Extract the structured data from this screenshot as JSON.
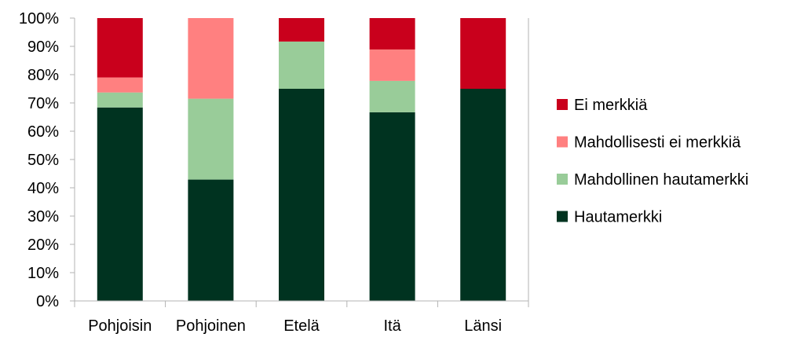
{
  "chart_data": {
    "type": "bar",
    "stacked": true,
    "normalized": true,
    "categories": [
      "Pohjoisin",
      "Pohjoinen",
      "Etelä",
      "Itä",
      "Länsi"
    ],
    "series": [
      {
        "name": "Hautamerkki",
        "color": "#003320",
        "values": [
          68.4,
          42.9,
          75.0,
          66.7,
          75.0
        ]
      },
      {
        "name": "Mahdollinen hautamerkki",
        "color": "#99cc99",
        "values": [
          5.3,
          28.6,
          16.7,
          11.1,
          0
        ]
      },
      {
        "name": "Mahdollisesti ei merkkiä",
        "color": "#ff8080",
        "values": [
          5.3,
          28.5,
          0,
          11.1,
          0
        ]
      },
      {
        "name": "Ei merkkiä",
        "color": "#c9001c",
        "values": [
          21.0,
          0,
          8.3,
          11.1,
          25.0
        ]
      }
    ],
    "y_ticks": [
      "0%",
      "10%",
      "20%",
      "30%",
      "40%",
      "50%",
      "60%",
      "70%",
      "80%",
      "90%",
      "100%"
    ],
    "ylim": [
      0,
      100
    ],
    "legend_order": [
      "Ei merkkiä",
      "Mahdollisesti ei merkkiä",
      "Mahdollinen hautamerkki",
      "Hautamerkki"
    ],
    "grid": false,
    "legend": "right",
    "axis_color": "#b3b3b3"
  }
}
